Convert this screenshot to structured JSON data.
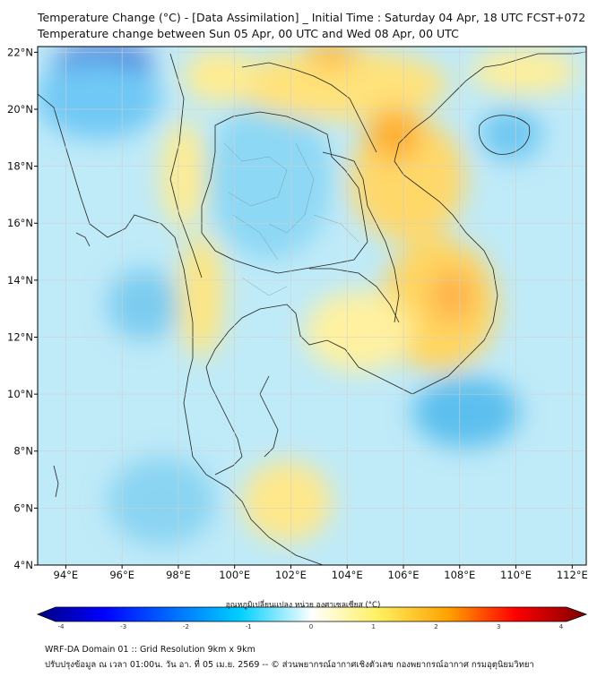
{
  "header": {
    "title": "Temperature Change (°C) - [Data Assimilation] _ Initial Time : Saturday 04 Apr, 18 UTC FCST+072",
    "subtitle": "Temperature change between Sun 05 Apr, 00 UTC and Wed 08 Apr, 00 UTC"
  },
  "map": {
    "lon_range": [
      93,
      112.5
    ],
    "lat_range": [
      4,
      22.2
    ],
    "lon_ticks": [
      "94°E",
      "96°E",
      "98°E",
      "100°E",
      "102°E",
      "104°E",
      "106°E",
      "108°E",
      "110°E",
      "112°E"
    ],
    "lat_ticks": [
      "22°N",
      "20°N",
      "18°N",
      "16°N",
      "14°N",
      "12°N",
      "10°N",
      "8°N",
      "6°N",
      "4°N"
    ],
    "grid": true
  },
  "colorbar": {
    "label": "อุณหภูมิเปลี่ยนแปลง หน่วย องศาเซลเซียส (°C)",
    "ticks": [
      "-4",
      "-3",
      "-2",
      "-1",
      "0",
      "1",
      "2",
      "3",
      "4"
    ],
    "range": [
      -4,
      4
    ],
    "colors": [
      "#000080",
      "#0000ff",
      "#0080ff",
      "#00d0ff",
      "#ffffff",
      "#ffee60",
      "#ffa000",
      "#ff0000",
      "#800000"
    ]
  },
  "footer": {
    "line1": "WRF-DA Domain 01 :: Grid Resolution 9km x 9km",
    "line2": "ปรับปรุงข้อมูล ณ เวลา 01:00น. วัน อา. ที่ 05 เม.ย. 2569 -- © ส่วนพยากรณ์อากาศเชิงตัวเลข กองพยากรณ์อากาศ กรมอุตุนิยมวิทยา"
  }
}
